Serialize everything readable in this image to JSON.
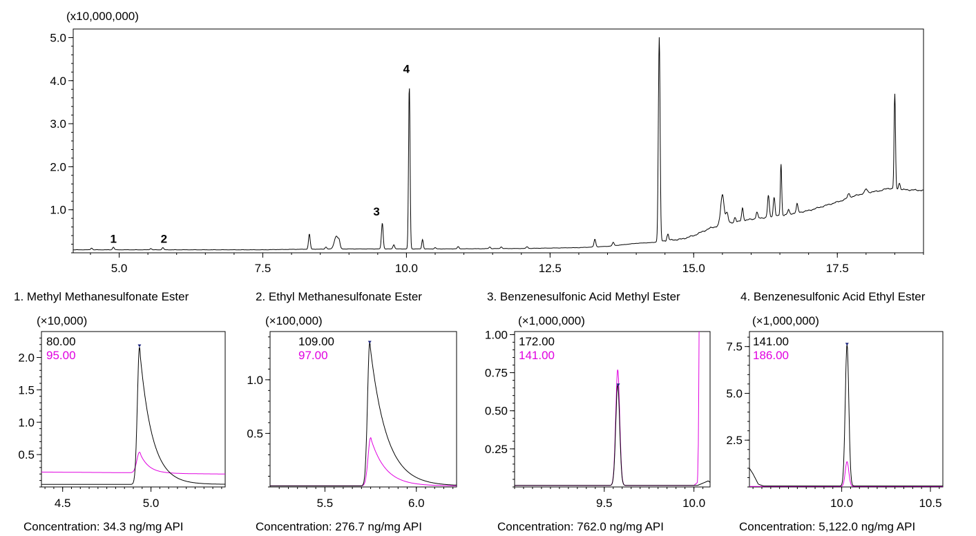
{
  "chart_data": [
    {
      "type": "line",
      "id": "tic",
      "multiplier": "(x10,000,000)",
      "xlim": [
        4.2,
        19.0
      ],
      "ylim": [
        0,
        5.2
      ],
      "xticks": [
        5.0,
        7.5,
        10.0,
        12.5,
        15.0,
        17.5
      ],
      "xtick_labels": [
        "5.0",
        "7.5",
        "10.0",
        "12.5",
        "15.0",
        "17.5"
      ],
      "yticks": [
        1.0,
        2.0,
        3.0,
        4.0,
        5.0
      ],
      "ytick_labels": [
        "1.0",
        "2.0",
        "3.0",
        "4.0",
        "5.0"
      ],
      "baseline": [
        [
          4.2,
          0.07
        ],
        [
          7.5,
          0.07
        ],
        [
          8.0,
          0.08
        ],
        [
          9.0,
          0.09
        ],
        [
          10.5,
          0.09
        ],
        [
          12.0,
          0.1
        ],
        [
          13.0,
          0.12
        ],
        [
          13.5,
          0.15
        ],
        [
          14.0,
          0.22
        ],
        [
          14.3,
          0.24
        ],
        [
          14.5,
          0.28
        ],
        [
          14.8,
          0.32
        ],
        [
          15.0,
          0.4
        ],
        [
          15.3,
          0.58
        ],
        [
          15.6,
          0.68
        ],
        [
          16.0,
          0.78
        ],
        [
          16.5,
          0.86
        ],
        [
          17.0,
          0.98
        ],
        [
          17.5,
          1.18
        ],
        [
          17.8,
          1.32
        ],
        [
          18.0,
          1.4
        ],
        [
          18.2,
          1.43
        ],
        [
          18.4,
          1.5
        ],
        [
          18.6,
          1.47
        ],
        [
          19.0,
          1.45
        ]
      ],
      "peaks": [
        {
          "rt": 4.52,
          "height": 0.04,
          "width": 0.015
        },
        {
          "rt": 4.9,
          "height": 0.06,
          "width": 0.015
        },
        {
          "rt": 5.55,
          "height": 0.03,
          "width": 0.015
        },
        {
          "rt": 5.76,
          "height": 0.05,
          "width": 0.015
        },
        {
          "rt": 8.31,
          "height": 0.35,
          "width": 0.015
        },
        {
          "rt": 8.6,
          "height": 0.05,
          "width": 0.015
        },
        {
          "rt": 8.78,
          "height": 0.3,
          "width": 0.035
        },
        {
          "rt": 8.83,
          "height": 0.12,
          "width": 0.015
        },
        {
          "rt": 9.58,
          "height": 0.6,
          "width": 0.015
        },
        {
          "rt": 9.78,
          "height": 0.1,
          "width": 0.015
        },
        {
          "rt": 10.05,
          "height": 3.78,
          "width": 0.013
        },
        {
          "rt": 10.28,
          "height": 0.22,
          "width": 0.013
        },
        {
          "rt": 10.5,
          "height": 0.03,
          "width": 0.015
        },
        {
          "rt": 10.9,
          "height": 0.05,
          "width": 0.015
        },
        {
          "rt": 11.45,
          "height": 0.04,
          "width": 0.015
        },
        {
          "rt": 11.65,
          "height": 0.04,
          "width": 0.015
        },
        {
          "rt": 12.1,
          "height": 0.04,
          "width": 0.015
        },
        {
          "rt": 13.28,
          "height": 0.18,
          "width": 0.015
        },
        {
          "rt": 13.6,
          "height": 0.08,
          "width": 0.015
        },
        {
          "rt": 14.4,
          "height": 4.75,
          "width": 0.015
        },
        {
          "rt": 14.55,
          "height": 0.15,
          "width": 0.015
        },
        {
          "rt": 15.5,
          "height": 0.7,
          "width": 0.03
        },
        {
          "rt": 15.58,
          "height": 0.25,
          "width": 0.02
        },
        {
          "rt": 15.72,
          "height": 0.12,
          "width": 0.015
        },
        {
          "rt": 15.85,
          "height": 0.3,
          "width": 0.015
        },
        {
          "rt": 16.1,
          "height": 0.15,
          "width": 0.015
        },
        {
          "rt": 16.3,
          "height": 0.5,
          "width": 0.015
        },
        {
          "rt": 16.4,
          "height": 0.45,
          "width": 0.015
        },
        {
          "rt": 16.52,
          "height": 1.2,
          "width": 0.012
        },
        {
          "rt": 16.65,
          "height": 0.1,
          "width": 0.015
        },
        {
          "rt": 16.8,
          "height": 0.2,
          "width": 0.015
        },
        {
          "rt": 17.7,
          "height": 0.1,
          "width": 0.02
        },
        {
          "rt": 18.0,
          "height": 0.08,
          "width": 0.02
        },
        {
          "rt": 18.5,
          "height": 2.2,
          "width": 0.012
        },
        {
          "rt": 18.58,
          "height": 0.15,
          "width": 0.015
        }
      ],
      "peak_labels": [
        {
          "text": "1",
          "x": 4.9,
          "y": 0.23
        },
        {
          "text": "2",
          "x": 5.78,
          "y": 0.23
        },
        {
          "text": "3",
          "x": 9.48,
          "y": 0.87
        },
        {
          "text": "4",
          "x": 10.0,
          "y": 4.18
        }
      ]
    },
    {
      "type": "line",
      "id": "p1",
      "title": "1. Methyl Methanesulfonate Ester",
      "multiplier": "(×10,000)",
      "xlim": [
        4.38,
        5.42
      ],
      "ylim": [
        0,
        2.4
      ],
      "xticks": [
        4.5,
        5.0
      ],
      "xtick_labels": [
        "4.5",
        "5.0"
      ],
      "yticks": [
        0.5,
        1.0,
        1.5,
        2.0
      ],
      "ytick_labels": [
        "0.5",
        "1.0",
        "1.5",
        "2.0"
      ],
      "series": [
        {
          "name": "80.00",
          "color": "#000000",
          "baseline": [
            [
              4.38,
              0.04
            ],
            [
              5.42,
              0.04
            ]
          ],
          "peak": {
            "rt": 4.935,
            "height": 2.12,
            "sigma": 0.012,
            "tau": 0.07
          }
        },
        {
          "name": "95.00",
          "color": "#e000e0",
          "baseline": [
            [
              4.38,
              0.23
            ],
            [
              4.9,
              0.22
            ],
            [
              5.0,
              0.21
            ],
            [
              5.42,
              0.2
            ]
          ],
          "peak": {
            "rt": 4.935,
            "height": 0.32,
            "sigma": 0.015,
            "tau": 0.05
          }
        }
      ],
      "apex_marker": {
        "x": 4.935,
        "y": 2.18
      },
      "concentration": "Concentration: 34.3 ng/mg API"
    },
    {
      "type": "line",
      "id": "p2",
      "title": "2. Ethyl Methanesulfonate Ester",
      "multiplier": "(×100,000)",
      "xlim": [
        5.2,
        6.22
      ],
      "ylim": [
        0,
        1.45
      ],
      "xticks": [
        5.5,
        6.0
      ],
      "xtick_labels": [
        "5.5",
        "6.0"
      ],
      "yticks": [
        0.5,
        1.0
      ],
      "ytick_labels": [
        "0.5",
        "1.0"
      ],
      "series": [
        {
          "name": "109.00",
          "color": "#000000",
          "baseline": [
            [
              5.2,
              0.01
            ],
            [
              6.22,
              0.01
            ]
          ],
          "peak": {
            "rt": 5.745,
            "height": 1.34,
            "sigma": 0.012,
            "tau": 0.09
          }
        },
        {
          "name": "97.00",
          "color": "#e000e0",
          "baseline": [
            [
              5.2,
              0.01
            ],
            [
              6.22,
              0.01
            ]
          ],
          "peak": {
            "rt": 5.75,
            "height": 0.45,
            "sigma": 0.014,
            "tau": 0.08
          }
        }
      ],
      "apex_marker": {
        "x": 5.745,
        "y": 1.35
      },
      "concentration": "Concentration: 276.7 ng/mg API"
    },
    {
      "type": "line",
      "id": "p3",
      "title": "3. Benzenesulfonic Acid Methyl Ester",
      "multiplier": "(×1,000,000)",
      "xlim": [
        9.0,
        10.09
      ],
      "ylim": [
        0,
        1.02
      ],
      "xticks": [
        9.5,
        10.0
      ],
      "xtick_labels": [
        "9.5",
        "10.0"
      ],
      "yticks": [
        0.25,
        0.5,
        0.75,
        1.0
      ],
      "ytick_labels": [
        "0.25",
        "0.50",
        "0.75",
        "1.00"
      ],
      "series": [
        {
          "name": "172.00",
          "color": "#000000",
          "baseline": [
            [
              9.0,
              0.01
            ],
            [
              10.02,
              0.01
            ],
            [
              10.06,
              0.03
            ],
            [
              10.08,
              0.04
            ],
            [
              10.09,
              0.03
            ]
          ],
          "peak": {
            "rt": 9.575,
            "height": 0.66,
            "sigma": 0.011,
            "tau": 0.004
          }
        },
        {
          "name": "141.00",
          "color": "#e000e0",
          "baseline": [
            [
              9.0,
              0.01
            ],
            [
              10.0,
              0.01
            ],
            [
              10.02,
              0.03
            ],
            [
              10.025,
              0.3
            ],
            [
              10.03,
              1.3
            ]
          ],
          "peak": {
            "rt": 9.575,
            "height": 0.76,
            "sigma": 0.011,
            "tau": 0.004
          }
        }
      ],
      "apex_marker": {
        "x": 9.578,
        "y": 0.67
      },
      "concentration": "Concentration: 762.0 ng/mg API"
    },
    {
      "type": "line",
      "id": "p4",
      "title": "4. Benzenesulfonic Acid Ethyl Ester",
      "multiplier": "(×1,000,000)",
      "xlim": [
        9.48,
        10.57
      ],
      "ylim": [
        0,
        8.3
      ],
      "xticks": [
        10.0,
        10.5
      ],
      "xtick_labels": [
        "10.0",
        "10.5"
      ],
      "yticks": [
        2.5,
        5.0,
        7.5
      ],
      "ytick_labels": [
        "2.5",
        "5.0",
        "7.5"
      ],
      "series": [
        {
          "name": "141.00",
          "color": "#000000",
          "baseline": [
            [
              9.48,
              1.0
            ],
            [
              9.5,
              0.7
            ],
            [
              9.53,
              0.15
            ],
            [
              9.56,
              0.05
            ],
            [
              10.57,
              0.05
            ]
          ],
          "peak": {
            "rt": 10.03,
            "height": 7.55,
            "sigma": 0.01,
            "tau": 0.004
          }
        },
        {
          "name": "186.00",
          "color": "#e000e0",
          "baseline": [
            [
              9.48,
              0.03
            ],
            [
              10.57,
              0.03
            ]
          ],
          "peak": {
            "rt": 10.03,
            "height": 1.32,
            "sigma": 0.01,
            "tau": 0.004
          }
        }
      ],
      "apex_marker": {
        "x": 10.03,
        "y": 7.62
      },
      "concentration": "Concentration: 5,122.0 ng/mg API"
    }
  ]
}
